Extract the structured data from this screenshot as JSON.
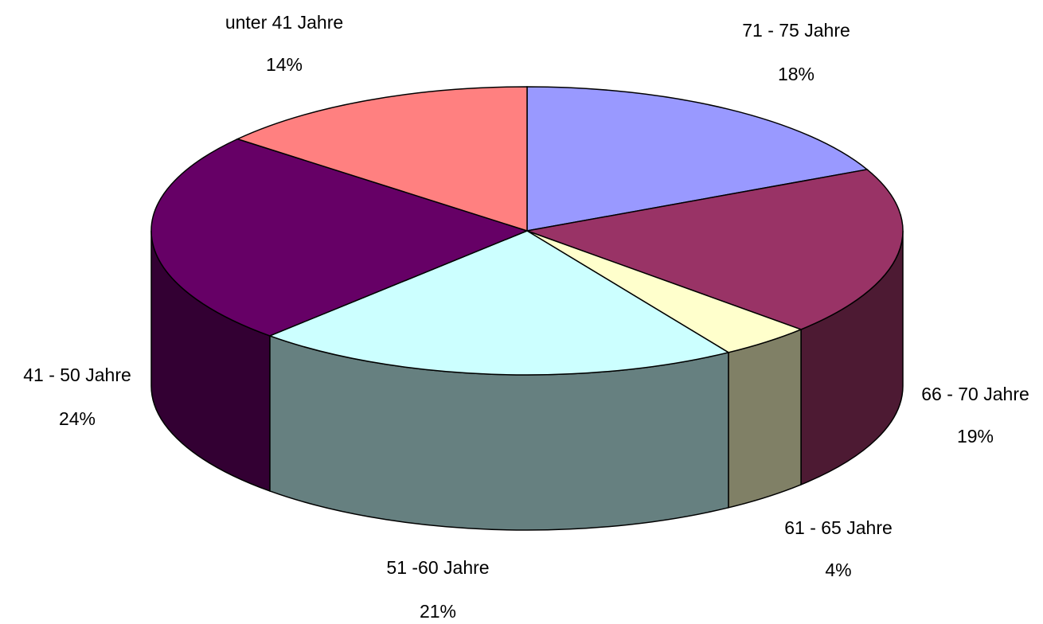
{
  "chart_data": {
    "type": "pie3d",
    "categories": [
      "71 - 75 Jahre",
      "66 - 70 Jahre",
      "61 - 65 Jahre",
      "51 -60 Jahre",
      "41 - 50 Jahre",
      "unter 41 Jahre"
    ],
    "values": [
      18,
      19,
      4,
      21,
      24,
      14
    ],
    "value_labels": [
      "18%",
      "19%",
      "4%",
      "21%",
      "24%",
      "14%"
    ],
    "colors": [
      "#9999ff",
      "#993366",
      "#ffffcc",
      "#ccffff",
      "#660066",
      "#ff8080"
    ]
  }
}
